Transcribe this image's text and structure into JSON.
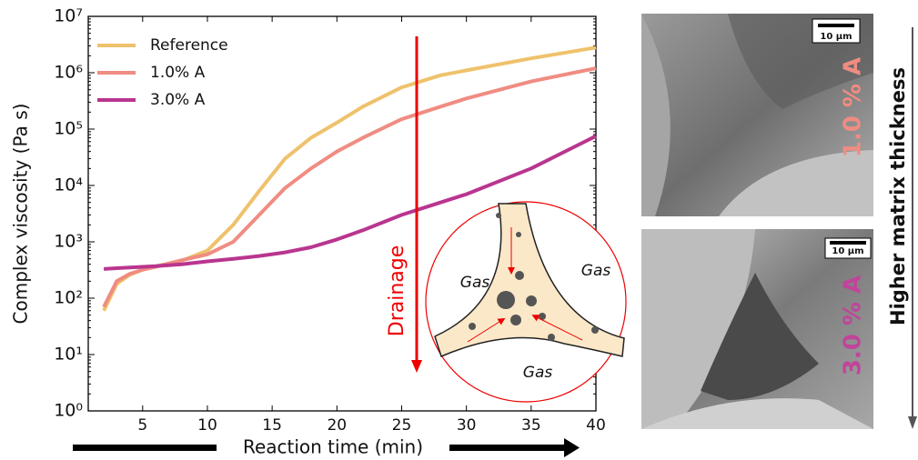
{
  "chart_data": {
    "type": "line",
    "x_label": "Reaction time (min)",
    "y_label": "Complex viscosity (Pa s)",
    "log_y": true,
    "legend": "upper left",
    "xlim": [
      0.8,
      40
    ],
    "xticks": [
      5,
      10,
      15,
      20,
      25,
      30,
      35,
      40
    ],
    "ylim": [
      1,
      10000000
    ],
    "yticks": [
      {
        "value": 1,
        "label": "10⁰"
      },
      {
        "value": 10,
        "label": "10¹"
      },
      {
        "value": 100,
        "label": "10²"
      },
      {
        "value": 1000,
        "label": "10³"
      },
      {
        "value": 10000,
        "label": "10⁴"
      },
      {
        "value": 100000,
        "label": "10⁵"
      },
      {
        "value": 1000000,
        "label": "10⁶"
      },
      {
        "value": 10000000,
        "label": "10⁷"
      }
    ],
    "x": [
      2,
      3,
      4,
      5,
      6,
      8,
      10,
      12,
      14,
      16,
      18,
      20,
      22,
      25,
      28,
      30,
      35,
      40
    ],
    "series": [
      {
        "name": "Reference",
        "color": "#eec26c",
        "values": [
          60,
          180,
          260,
          320,
          370,
          460,
          700,
          2000,
          8000,
          30000,
          70000,
          130000,
          250000,
          550000,
          900000,
          1100000,
          1800000,
          2800000
        ]
      },
      {
        "name": "1.0% A",
        "color": "#f08c82",
        "values": [
          70,
          200,
          270,
          320,
          360,
          470,
          600,
          1000,
          3000,
          9000,
          20000,
          40000,
          70000,
          150000,
          250000,
          350000,
          700000,
          1200000
        ]
      },
      {
        "name": "3.0% A",
        "color": "#b9358f",
        "values": [
          330,
          340,
          350,
          360,
          370,
          400,
          450,
          500,
          560,
          650,
          800,
          1100,
          1600,
          3000,
          5000,
          7000,
          20000,
          75000
        ]
      }
    ],
    "annotation": "Drainage",
    "inset_labels": [
      "Gas",
      "Gas",
      "Gas"
    ]
  },
  "images": [
    {
      "scale_bar": "10 µm",
      "label": "1.0 % A"
    },
    {
      "scale_bar": "10 µm",
      "label": "3.0 % A"
    }
  ],
  "side_label": "Higher matrix thickness"
}
